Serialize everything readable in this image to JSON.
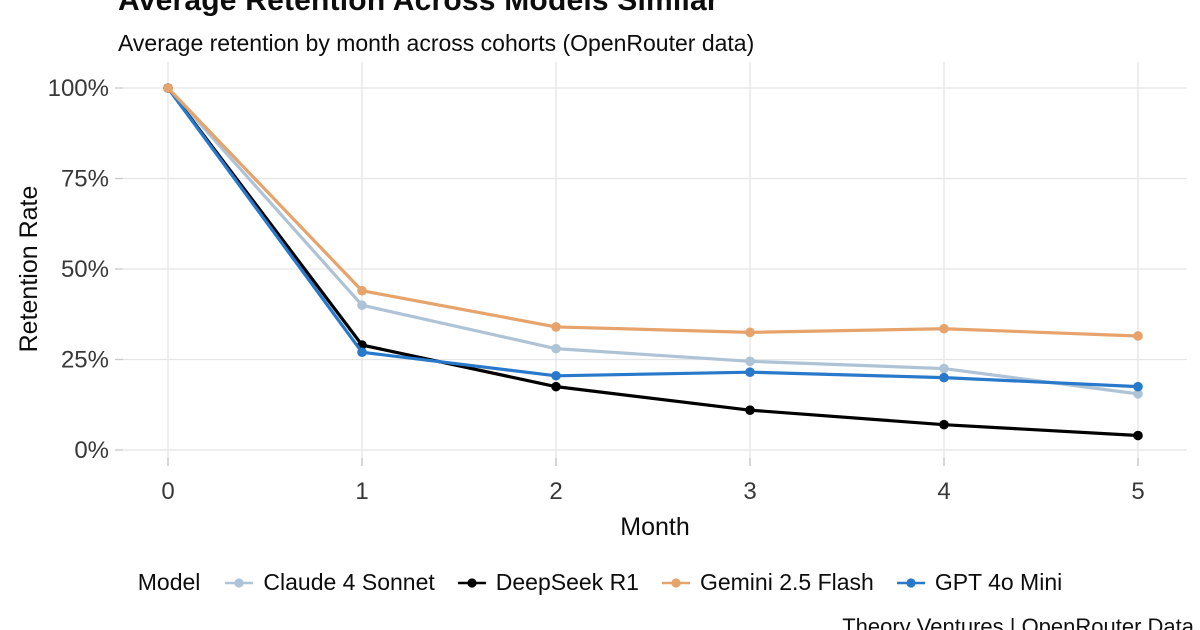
{
  "footer": {
    "credit": "Theory Ventures | OpenRouter Data"
  },
  "chart_data": {
    "type": "line",
    "title": "Average Retention Across Models Similar",
    "subtitle": "Average retention by month across cohorts (OpenRouter data)",
    "xlabel": "Month",
    "ylabel": "Retention Rate",
    "x": [
      0,
      1,
      2,
      3,
      4,
      5
    ],
    "x_tick_labels": [
      "0",
      "1",
      "2",
      "3",
      "4",
      "5"
    ],
    "y_tick_values": [
      0,
      25,
      50,
      75,
      100
    ],
    "y_tick_labels": [
      "0%",
      "25%",
      "50%",
      "75%",
      "100%"
    ],
    "ylim": [
      0,
      100
    ],
    "grid": true,
    "legend_title": "Model",
    "legend_position": "bottom",
    "series": [
      {
        "name": "Claude 4 Sonnet",
        "color": "#AFC3D7",
        "values": [
          100,
          40,
          28,
          24.5,
          22.5,
          15.5
        ]
      },
      {
        "name": "DeepSeek R1",
        "color": "#000000",
        "values": [
          100,
          29,
          17.5,
          11,
          7,
          4
        ]
      },
      {
        "name": "Gemini 2.5 Flash",
        "color": "#E6A36C",
        "values": [
          100,
          44,
          34,
          32.5,
          33.5,
          31.5
        ]
      },
      {
        "name": "GPT 4o Mini",
        "color": "#2979CB",
        "values": [
          100,
          27,
          20.5,
          21.5,
          20,
          17.5
        ]
      }
    ],
    "draw_order": [
      0,
      1,
      3,
      2
    ],
    "colors": {
      "gridline": "#E5E5E5",
      "tick_mark": "#C9C9C9",
      "tick_label": "#383838"
    }
  }
}
